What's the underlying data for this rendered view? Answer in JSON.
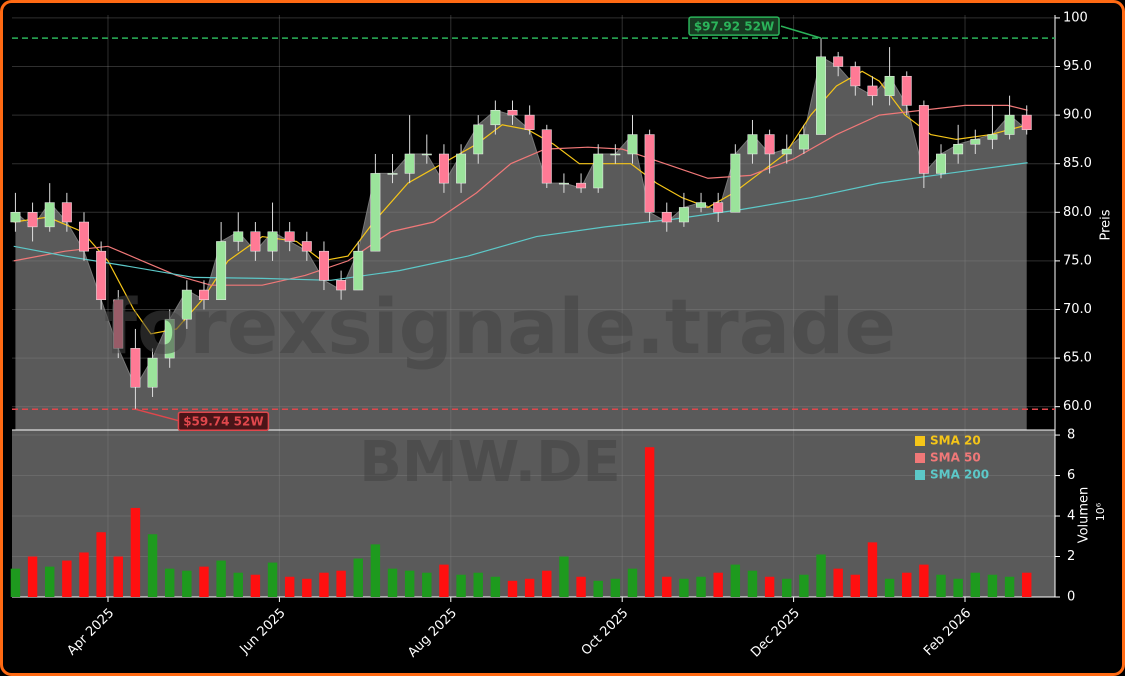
{
  "chart_data": {
    "type": "candlestick",
    "watermark": "forexsignale.trade",
    "symbol": "BMW.DE",
    "ylabel": "Preis",
    "xlim": [
      2.88,
      15.05
    ],
    "xticks": [
      {
        "value": 4,
        "label": "Apr 2025"
      },
      {
        "value": 6,
        "label": "Jun 2025"
      },
      {
        "value": 8,
        "label": "Aug 2025"
      },
      {
        "value": 10,
        "label": "Oct 2025"
      },
      {
        "value": 12,
        "label": "Dec 2025"
      },
      {
        "value": 14,
        "label": "Feb 2026"
      }
    ],
    "ylim": [
      57.6,
      100.3
    ],
    "yticks": [
      {
        "value": 60,
        "label": "60.0"
      },
      {
        "value": 65,
        "label": "65.0"
      },
      {
        "value": 70,
        "label": "70.0"
      },
      {
        "value": 75,
        "label": "75.0"
      },
      {
        "value": 80,
        "label": "80.0"
      },
      {
        "value": 85,
        "label": "85.0"
      },
      {
        "value": 90,
        "label": "90.0"
      },
      {
        "value": 95,
        "label": "95.0"
      },
      100
    ],
    "grid": true,
    "up_color": "#9be39b",
    "down_color": "#ff7a95",
    "area_color": "#5a5a5a",
    "x": [
      2.92,
      3.12,
      3.32,
      3.52,
      3.72,
      3.92,
      4.12,
      4.32,
      4.52,
      4.72,
      4.92,
      5.12,
      5.32,
      5.52,
      5.72,
      5.92,
      6.12,
      6.32,
      6.52,
      6.72,
      6.92,
      7.12,
      7.32,
      7.52,
      7.72,
      7.92,
      8.12,
      8.32,
      8.52,
      8.72,
      8.92,
      9.12,
      9.32,
      9.52,
      9.72,
      9.92,
      10.12,
      10.32,
      10.52,
      10.72,
      10.92,
      11.12,
      11.32,
      11.52,
      11.72,
      11.92,
      12.12,
      12.32,
      12.52,
      12.72,
      12.92,
      13.12,
      13.32,
      13.52,
      13.72,
      13.92,
      14.12,
      14.32,
      14.52,
      14.72
    ],
    "open": [
      79,
      80,
      78.5,
      81,
      79,
      76,
      71,
      66,
      62,
      65,
      69,
      72,
      71,
      77,
      78,
      76,
      78,
      77,
      76,
      73,
      72,
      76,
      84,
      84,
      86,
      86,
      83,
      86,
      89,
      90.5,
      90,
      88.5,
      83,
      83,
      82.5,
      86,
      86,
      88,
      80,
      79,
      80.5,
      81,
      80,
      86,
      88,
      86,
      86.5,
      88,
      96,
      95,
      93,
      92,
      94,
      91,
      84,
      86,
      87,
      87.5,
      88,
      90
    ],
    "high": [
      82,
      81,
      83,
      82,
      80,
      77,
      72,
      68,
      66,
      70,
      73,
      73,
      79,
      80,
      79,
      81,
      79,
      78,
      77,
      74,
      77,
      86,
      86,
      90,
      88,
      87,
      87,
      90,
      91.5,
      91.5,
      91,
      89,
      84,
      84,
      87,
      87,
      90,
      88.5,
      81,
      82,
      82,
      82,
      87,
      89.5,
      88.5,
      88,
      89,
      97.92,
      96.5,
      95.5,
      94,
      97,
      94.5,
      91.5,
      87,
      89,
      88.5,
      91,
      92,
      91
    ],
    "low": [
      78,
      77,
      78,
      78,
      75,
      70,
      65,
      59.74,
      61,
      64,
      68,
      70,
      71,
      76,
      75,
      75,
      76,
      75,
      72,
      71,
      72,
      76,
      83,
      83,
      85,
      82,
      82,
      85,
      88,
      89,
      88,
      82.5,
      82,
      82,
      82,
      85,
      85,
      79,
      78,
      78.5,
      80,
      79,
      80,
      85,
      84,
      85,
      86,
      88,
      94,
      92,
      91,
      91,
      90,
      82.5,
      83.5,
      85,
      86,
      86.5,
      87.5,
      88
    ],
    "close": [
      80,
      78.5,
      81,
      79,
      76,
      71,
      66,
      62,
      65,
      69,
      72,
      71,
      77,
      78,
      76,
      78,
      77,
      76,
      73,
      72,
      76,
      84,
      84,
      86,
      86,
      83,
      86,
      89,
      90.5,
      90,
      88.5,
      83,
      83,
      82.5,
      86,
      86,
      88,
      80,
      79,
      80.5,
      81,
      80,
      86,
      88,
      86,
      86.5,
      88,
      96,
      95,
      93,
      92,
      94,
      91,
      84,
      86,
      87,
      87.5,
      88,
      90,
      88.5
    ],
    "series": [
      {
        "name": "SMA 20",
        "color": "#f5c518",
        "x": [
          2.9,
          3.3,
          3.7,
          4.0,
          4.3,
          4.5,
          4.8,
          5.1,
          5.4,
          5.8,
          6.2,
          6.5,
          6.8,
          7.1,
          7.5,
          7.9,
          8.3,
          8.6,
          8.9,
          9.2,
          9.5,
          9.8,
          10.1,
          10.4,
          10.7,
          11.0,
          11.3,
          11.6,
          11.9,
          12.2,
          12.5,
          12.8,
          13.0,
          13.3,
          13.6,
          13.9,
          14.3,
          14.73
        ],
        "values": [
          79,
          79.5,
          78,
          75,
          70,
          67.5,
          68,
          71,
          75,
          77.5,
          77,
          75,
          75.5,
          79,
          83,
          85,
          87,
          89,
          88.5,
          87,
          85,
          85,
          85,
          83,
          81.5,
          80.5,
          82,
          84,
          86,
          90,
          93,
          94.5,
          93.5,
          90,
          88,
          87.5,
          88,
          89
        ]
      },
      {
        "name": "SMA 50",
        "color": "#f07878",
        "x": [
          2.9,
          3.5,
          4.0,
          4.4,
          4.8,
          5.2,
          5.8,
          6.3,
          6.8,
          7.3,
          7.8,
          8.3,
          8.7,
          9.1,
          9.6,
          10.0,
          10.5,
          11.0,
          11.5,
          12.0,
          12.5,
          13.0,
          13.5,
          14.0,
          14.5,
          14.73
        ],
        "values": [
          75,
          76,
          76.5,
          75,
          73.5,
          72.5,
          72.5,
          73.5,
          75,
          78,
          79,
          82,
          85,
          86.5,
          86.7,
          86.5,
          85,
          83.5,
          83.8,
          85.5,
          88,
          90,
          90.5,
          91,
          91,
          90.5
        ]
      },
      {
        "name": "SMA 200",
        "color": "#5cc8c8",
        "x": [
          2.9,
          3.5,
          4.2,
          5.0,
          5.8,
          6.6,
          7.4,
          8.2,
          9.0,
          9.8,
          10.6,
          11.4,
          12.2,
          13.0,
          13.8,
          14.73
        ],
        "values": [
          76.5,
          75.5,
          74.5,
          73.3,
          73.2,
          73,
          74,
          75.5,
          77.5,
          78.5,
          79.3,
          80.3,
          81.5,
          83,
          84,
          85.1
        ]
      }
    ],
    "annotations": [
      {
        "text": "$97.92 52W",
        "value": 97.92,
        "color": "#2bb35a"
      },
      {
        "text": "$59.74 52W",
        "value": 59.74,
        "color": "#e0474c"
      }
    ],
    "volume": {
      "label": "Volumen",
      "exponent": "10⁶",
      "ylim": [
        0,
        8.25
      ],
      "yticks": [
        0,
        2,
        4,
        6,
        8
      ],
      "up_color": "#1e9a1e",
      "down_color": "#ff1010",
      "values": [
        1.4,
        2.0,
        1.5,
        1.8,
        2.2,
        3.2,
        2.0,
        4.4,
        3.1,
        1.4,
        1.3,
        1.5,
        1.8,
        1.2,
        1.1,
        1.7,
        1.0,
        0.9,
        1.2,
        1.3,
        1.9,
        2.6,
        1.4,
        1.3,
        1.2,
        1.6,
        1.1,
        1.2,
        1.0,
        0.8,
        0.9,
        1.3,
        2.0,
        1.0,
        0.8,
        0.9,
        1.4,
        7.4,
        1.0,
        0.9,
        1.0,
        1.2,
        1.6,
        1.3,
        1.0,
        0.9,
        1.1,
        2.1,
        1.4,
        1.1,
        2.7,
        0.9,
        1.2,
        1.6,
        1.1,
        0.9,
        1.2,
        1.1,
        1.0,
        1.2
      ]
    }
  }
}
